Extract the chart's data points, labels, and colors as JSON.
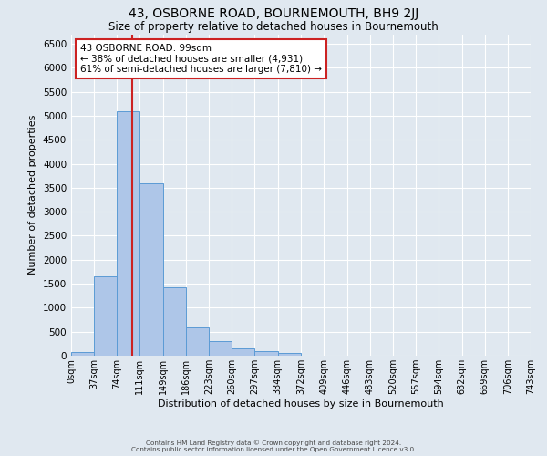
{
  "title": "43, OSBORNE ROAD, BOURNEMOUTH, BH9 2JJ",
  "subtitle": "Size of property relative to detached houses in Bournemouth",
  "xlabel": "Distribution of detached houses by size in Bournemouth",
  "ylabel": "Number of detached properties",
  "bin_edges": [
    0,
    37,
    74,
    111,
    149,
    186,
    223,
    260,
    297,
    334,
    372,
    409,
    446,
    483,
    520,
    557,
    594,
    632,
    669,
    706,
    743
  ],
  "bin_labels": [
    "0sqm",
    "37sqm",
    "74sqm",
    "111sqm",
    "149sqm",
    "186sqm",
    "223sqm",
    "260sqm",
    "297sqm",
    "334sqm",
    "372sqm",
    "409sqm",
    "446sqm",
    "483sqm",
    "520sqm",
    "557sqm",
    "594sqm",
    "632sqm",
    "669sqm",
    "706sqm",
    "743sqm"
  ],
  "bar_heights": [
    70,
    1650,
    5100,
    3600,
    1420,
    580,
    300,
    150,
    90,
    50,
    0,
    0,
    0,
    0,
    0,
    0,
    0,
    0,
    0,
    0
  ],
  "bar_color": "#aec6e8",
  "bar_edge_color": "#5b9bd5",
  "bg_color": "#e0e8f0",
  "grid_color": "#ffffff",
  "red_line_x": 99,
  "ann_line1": "43 OSBORNE ROAD: 99sqm",
  "ann_line2": "← 38% of detached houses are smaller (4,931)",
  "ann_line3": "61% of semi-detached houses are larger (7,810) →",
  "ann_box_color": "#ffffff",
  "ann_box_edge": "#cc2222",
  "ylim_max": 6700,
  "yticks": [
    0,
    500,
    1000,
    1500,
    2000,
    2500,
    3000,
    3500,
    4000,
    4500,
    5000,
    5500,
    6000,
    6500
  ],
  "footer_line1": "Contains HM Land Registry data © Crown copyright and database right 2024.",
  "footer_line2": "Contains public sector information licensed under the Open Government Licence v3.0."
}
